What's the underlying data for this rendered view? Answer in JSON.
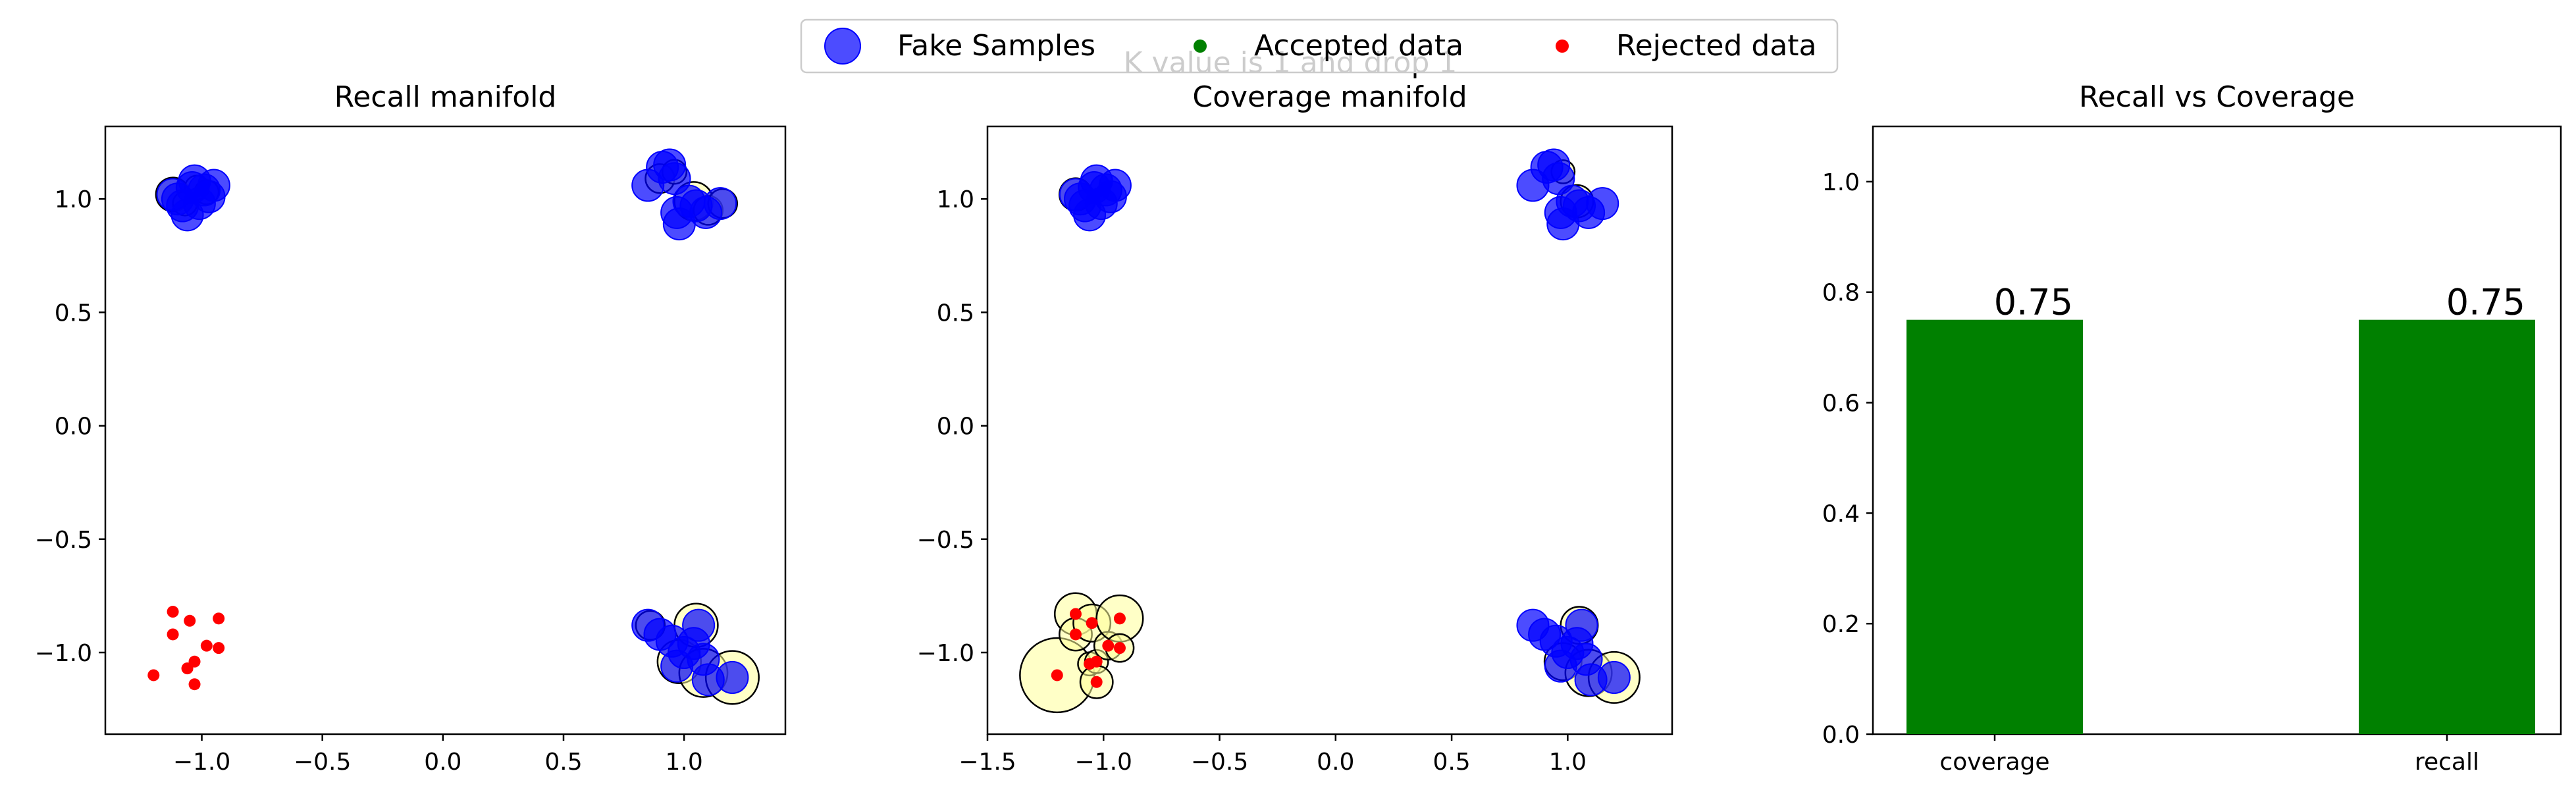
{
  "figure": {
    "suptitle": "K value is 1 and drop 1",
    "legend": [
      {
        "label": "Fake Samples",
        "color": "#0000ff",
        "marker": "large-circle"
      },
      {
        "label": "Accepted data",
        "color": "#008000",
        "marker": "small-dot"
      },
      {
        "label": "Rejected data",
        "color": "#ff0000",
        "marker": "small-dot"
      }
    ]
  },
  "chart_data": [
    {
      "type": "scatter",
      "title": "Recall manifold",
      "xlim": [
        -1.4,
        1.42
      ],
      "ylim": [
        -1.36,
        1.32
      ],
      "xticks": [
        -1.0,
        -0.5,
        0.0,
        0.5,
        1.0
      ],
      "xtick_labels": [
        "−1.0",
        "−0.5",
        "0.0",
        "0.5",
        "1.0"
      ],
      "yticks": [
        -1.0,
        -0.5,
        0.0,
        0.5,
        1.0
      ],
      "ytick_labels": [
        "−1.0",
        "−0.5",
        "0.0",
        "0.5",
        "1.0"
      ],
      "fake_samples": [
        [
          -1.12,
          1.02
        ],
        [
          -1.08,
          0.97
        ],
        [
          -1.06,
          0.93
        ],
        [
          -1.03,
          1.08
        ],
        [
          -1.01,
          0.98
        ],
        [
          -0.99,
          1.04
        ],
        [
          -0.97,
          1.01
        ],
        [
          -0.95,
          1.06
        ],
        [
          -1.1,
          1.0
        ],
        [
          -1.04,
          1.05
        ],
        [
          0.85,
          1.06
        ],
        [
          0.91,
          1.14
        ],
        [
          0.94,
          1.15
        ],
        [
          0.96,
          1.09
        ],
        [
          0.97,
          0.94
        ],
        [
          0.98,
          0.89
        ],
        [
          1.02,
          0.99
        ],
        [
          1.05,
          0.97
        ],
        [
          1.09,
          0.94
        ],
        [
          1.15,
          0.98
        ],
        [
          0.85,
          -0.88
        ],
        [
          0.9,
          -0.92
        ],
        [
          0.95,
          -0.95
        ],
        [
          0.97,
          -1.06
        ],
        [
          1.0,
          -1.0
        ],
        [
          1.04,
          -0.96
        ],
        [
          1.06,
          -0.88
        ],
        [
          1.08,
          -1.03
        ],
        [
          1.1,
          -1.12
        ],
        [
          1.2,
          -1.11
        ]
      ],
      "real_points": [
        {
          "x": -1.12,
          "y": 1.02,
          "r": 0.07,
          "status": "accepted"
        },
        {
          "x": -1.07,
          "y": 0.98,
          "r": 0.05,
          "status": "accepted"
        },
        {
          "x": -1.02,
          "y": 1.05,
          "r": 0.05,
          "status": "accepted"
        },
        {
          "x": -0.98,
          "y": 1.03,
          "r": 0.05,
          "status": "accepted"
        },
        {
          "x": 0.9,
          "y": 1.09,
          "r": 0.06,
          "status": "accepted"
        },
        {
          "x": 0.96,
          "y": 1.12,
          "r": 0.05,
          "status": "accepted"
        },
        {
          "x": 1.04,
          "y": 0.99,
          "r": 0.08,
          "status": "accepted"
        },
        {
          "x": 1.1,
          "y": 0.95,
          "r": 0.06,
          "status": "accepted"
        },
        {
          "x": 1.16,
          "y": 0.98,
          "r": 0.06,
          "status": "accepted"
        },
        {
          "x": 0.86,
          "y": -0.88,
          "r": 0.06,
          "status": "accepted"
        },
        {
          "x": 0.98,
          "y": -1.04,
          "r": 0.09,
          "status": "accepted"
        },
        {
          "x": 1.05,
          "y": -0.88,
          "r": 0.09,
          "status": "accepted"
        },
        {
          "x": 1.08,
          "y": -1.09,
          "r": 0.1,
          "status": "accepted"
        },
        {
          "x": 1.2,
          "y": -1.11,
          "r": 0.11,
          "status": "accepted"
        },
        {
          "x": -1.2,
          "y": -1.1,
          "status": "rejected"
        },
        {
          "x": -1.12,
          "y": -0.82,
          "status": "rejected"
        },
        {
          "x": -1.12,
          "y": -0.92,
          "status": "rejected"
        },
        {
          "x": -1.05,
          "y": -0.86,
          "status": "rejected"
        },
        {
          "x": -1.06,
          "y": -1.07,
          "status": "rejected"
        },
        {
          "x": -1.03,
          "y": -1.04,
          "status": "rejected"
        },
        {
          "x": -0.98,
          "y": -0.97,
          "status": "rejected"
        },
        {
          "x": -0.93,
          "y": -0.85,
          "status": "rejected"
        },
        {
          "x": -0.93,
          "y": -0.98,
          "status": "rejected"
        },
        {
          "x": -1.03,
          "y": -1.14,
          "status": "rejected"
        }
      ]
    },
    {
      "type": "scatter",
      "title": "Coverage manifold",
      "xlim": [
        -1.5,
        1.45
      ],
      "ylim": [
        -1.36,
        1.32
      ],
      "xticks": [
        -1.5,
        -1.0,
        -0.5,
        0.0,
        0.5,
        1.0
      ],
      "xtick_labels": [
        "−1.5",
        "−1.0",
        "−0.5",
        "0.0",
        "0.5",
        "1.0"
      ],
      "yticks": [
        -1.0,
        -0.5,
        0.0,
        0.5,
        1.0
      ],
      "ytick_labels": [
        "−1.0",
        "−0.5",
        "0.0",
        "0.5",
        "1.0"
      ],
      "fake_samples": [
        [
          -1.12,
          1.02
        ],
        [
          -1.08,
          0.97
        ],
        [
          -1.06,
          0.93
        ],
        [
          -1.03,
          1.08
        ],
        [
          -1.01,
          0.98
        ],
        [
          -0.99,
          1.04
        ],
        [
          -0.97,
          1.01
        ],
        [
          -0.95,
          1.06
        ],
        [
          -1.1,
          1.0
        ],
        [
          -1.04,
          1.05
        ],
        [
          0.85,
          1.06
        ],
        [
          0.91,
          1.14
        ],
        [
          0.94,
          1.15
        ],
        [
          0.96,
          1.09
        ],
        [
          0.97,
          0.94
        ],
        [
          0.98,
          0.89
        ],
        [
          1.02,
          0.99
        ],
        [
          1.05,
          0.97
        ],
        [
          1.09,
          0.94
        ],
        [
          1.15,
          0.98
        ],
        [
          0.85,
          -0.88
        ],
        [
          0.9,
          -0.92
        ],
        [
          0.95,
          -0.95
        ],
        [
          0.97,
          -1.06
        ],
        [
          1.0,
          -1.0
        ],
        [
          1.04,
          -0.96
        ],
        [
          1.06,
          -0.88
        ],
        [
          1.08,
          -1.03
        ],
        [
          1.1,
          -1.12
        ],
        [
          1.2,
          -1.11
        ]
      ],
      "fake_circles": [
        {
          "x": -1.12,
          "y": 1.02,
          "r": 0.07
        },
        {
          "x": 0.98,
          "y": 1.12,
          "r": 0.05
        },
        {
          "x": 1.04,
          "y": 0.99,
          "r": 0.07
        },
        {
          "x": 0.98,
          "y": -1.04,
          "r": 0.08
        },
        {
          "x": 1.05,
          "y": -0.88,
          "r": 0.08
        },
        {
          "x": 1.09,
          "y": -1.09,
          "r": 0.1
        },
        {
          "x": 1.2,
          "y": -1.11,
          "r": 0.11
        }
      ],
      "real_points": [
        {
          "x": -1.2,
          "y": -1.1,
          "r": 0.16,
          "status": "rejected"
        },
        {
          "x": -1.12,
          "y": -0.83,
          "r": 0.09,
          "status": "rejected"
        },
        {
          "x": -1.12,
          "y": -0.92,
          "r": 0.07,
          "status": "rejected"
        },
        {
          "x": -1.05,
          "y": -0.87,
          "r": 0.08,
          "status": "rejected"
        },
        {
          "x": -1.06,
          "y": -1.05,
          "r": 0.05,
          "status": "rejected"
        },
        {
          "x": -1.03,
          "y": -1.04,
          "r": 0.05,
          "status": "rejected"
        },
        {
          "x": -1.03,
          "y": -1.13,
          "r": 0.07,
          "status": "rejected"
        },
        {
          "x": -0.98,
          "y": -0.97,
          "r": 0.06,
          "status": "rejected"
        },
        {
          "x": -0.93,
          "y": -0.85,
          "r": 0.1,
          "status": "rejected"
        },
        {
          "x": -0.93,
          "y": -0.98,
          "r": 0.06,
          "status": "rejected"
        }
      ]
    },
    {
      "type": "bar",
      "title": "Recall vs Coverage",
      "categories": [
        "coverage",
        "recall"
      ],
      "values": [
        0.75,
        0.75
      ],
      "value_labels": [
        "0.75",
        "0.75"
      ],
      "ylim": [
        0,
        1.1
      ],
      "yticks": [
        0.0,
        0.2,
        0.4,
        0.6,
        0.8,
        1.0
      ],
      "ytick_labels": [
        "0.0",
        "0.2",
        "0.4",
        "0.6",
        "0.8",
        "1.0"
      ],
      "bar_color": "#008000"
    }
  ]
}
